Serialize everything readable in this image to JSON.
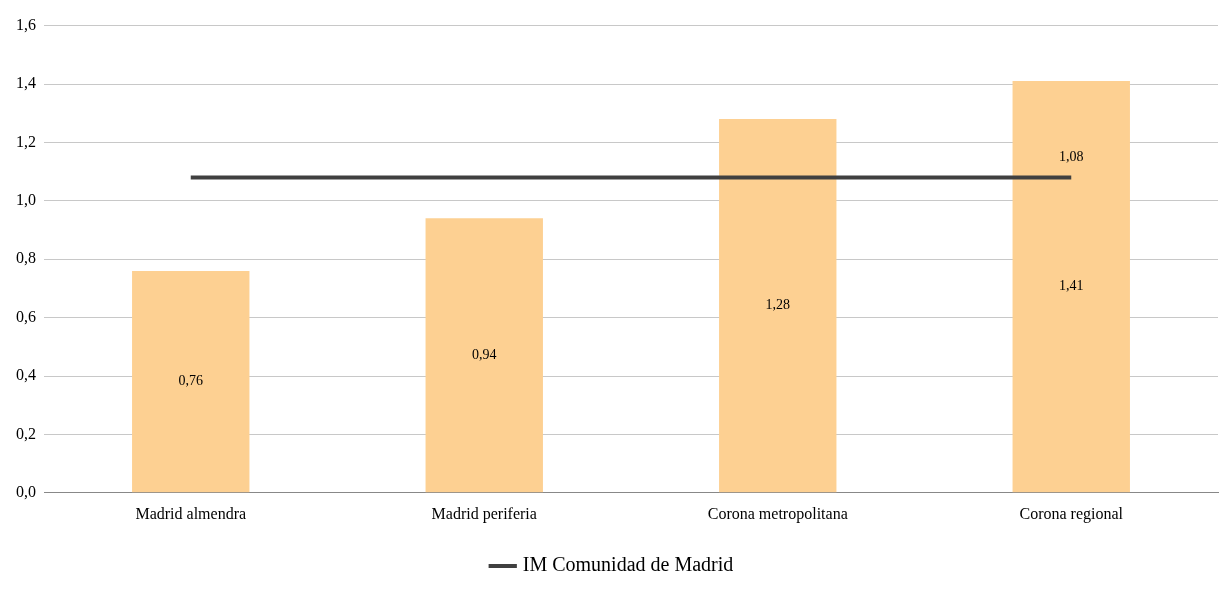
{
  "chart_data": {
    "type": "bar",
    "categories": [
      "Madrid almendra",
      "Madrid periferia",
      "Corona metropolitana",
      "Corona regional"
    ],
    "series": [
      {
        "color": "#fdd092",
        "values": [
          0.76,
          0.94,
          1.28,
          1.41
        ],
        "value_labels": [
          "0,76",
          "0,94",
          "1,28",
          "1,41"
        ]
      },
      {
        "type": "line",
        "name": "IM Comunidad de Madrid",
        "color": "#404040",
        "values": [
          1.08,
          1.08,
          1.08,
          1.08
        ],
        "value_labels": [
          null,
          null,
          null,
          "1,08"
        ]
      }
    ],
    "ylim": [
      0,
      1.6
    ],
    "yticks": [
      {
        "value": 0,
        "label": "0,0"
      },
      {
        "value": 0.2,
        "label": "0,2"
      },
      {
        "value": 0.4,
        "label": "0,4"
      },
      {
        "value": 0.6,
        "label": "0,6"
      },
      {
        "value": 0.8,
        "label": "0,8"
      },
      {
        "value": 1,
        "label": "1,0"
      },
      {
        "value": 1.2,
        "label": "1,2"
      },
      {
        "value": 1.4,
        "label": "1,4"
      },
      {
        "value": 1.6,
        "label": "1,6"
      }
    ],
    "grid": "y",
    "legend": "bottom",
    "marker": "none",
    "line_style": "solid"
  }
}
